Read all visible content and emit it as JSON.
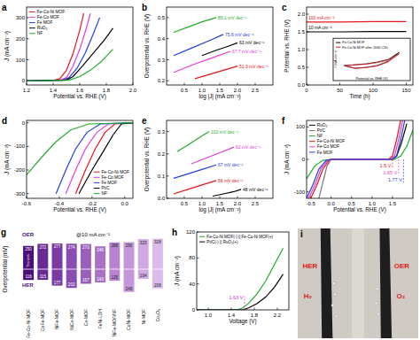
{
  "chart_data": [
    {
      "type": "line",
      "title": "a",
      "xlabel": "Potential vs. RHE (V)",
      "ylabel": "J (mA cm⁻²)",
      "xlim": [
        1.2,
        2.0
      ],
      "xticks": [
        1.2,
        1.4,
        1.6,
        1.8,
        {
          "value": 2,
          "label": "2.0"
        }
      ],
      "ylim": [
        -20,
        350
      ],
      "yticks": [
        0,
        100,
        200,
        300
      ],
      "legend": "upper left",
      "series": [
        {
          "name": "Fe-Co-Ni MOF",
          "color": "#e8141b",
          "x": [
            1.2,
            1.4,
            1.45,
            1.5,
            1.55,
            1.6,
            1.63
          ],
          "values": [
            0,
            2,
            10,
            50,
            130,
            240,
            320
          ]
        },
        {
          "name": "Fe-Co MOF",
          "color": "#e63bd6",
          "x": [
            1.2,
            1.45,
            1.5,
            1.55,
            1.6,
            1.65,
            1.68
          ],
          "values": [
            0,
            3,
            15,
            70,
            150,
            250,
            320
          ]
        },
        {
          "name": "Fe MOF",
          "color": "#1f3fe0",
          "x": [
            1.2,
            1.47,
            1.52,
            1.58,
            1.64,
            1.7,
            1.75
          ],
          "values": [
            0,
            3,
            15,
            60,
            130,
            220,
            300
          ]
        },
        {
          "name": "RuO₂",
          "color": "#000000",
          "x": [
            1.2,
            1.5,
            1.55,
            1.62,
            1.7,
            1.78,
            1.85
          ],
          "values": [
            0,
            4,
            20,
            70,
            130,
            190,
            250
          ]
        },
        {
          "name": "NF",
          "color": "#1fae2a",
          "x": [
            1.2,
            1.52,
            1.6,
            1.68,
            1.76,
            1.85
          ],
          "values": [
            0,
            3,
            20,
            50,
            90,
            150
          ]
        }
      ]
    },
    {
      "type": "line",
      "title": "b",
      "xlabel": "log |J| (mA cm⁻²)",
      "ylabel": "Overpotential vs. RHE (V)",
      "xlim": [
        0,
        3
      ],
      "xticks": [
        0.5,
        {
          "value": 1,
          "label": "1.0"
        },
        1.5,
        {
          "value": 2,
          "label": "2.0"
        },
        2.5
      ],
      "ylim": [
        0.18,
        0.55
      ],
      "yticks": [
        0.2,
        0.3,
        0.4,
        0.5
      ],
      "series": [
        {
          "label": "85.1 mV dec⁻¹",
          "color": "#1fae2a",
          "x": [
            0.2,
            0.6,
            1.0,
            1.4
          ],
          "values": [
            0.43,
            0.455,
            0.48,
            0.5
          ]
        },
        {
          "label": "75.6 mV dec⁻¹",
          "color": "#1f3fe0",
          "x": [
            0.2,
            0.7,
            1.2,
            1.6
          ],
          "values": [
            0.32,
            0.355,
            0.39,
            0.42
          ]
        },
        {
          "label": "63 mV dec⁻¹",
          "color": "#000000",
          "x": [
            1.0,
            1.4,
            1.7,
            2.0
          ],
          "values": [
            0.32,
            0.345,
            0.362,
            0.38
          ]
        },
        {
          "label": "67.7 mV dec⁻¹",
          "color": "#e63bd6",
          "x": [
            0.2,
            0.8,
            1.3,
            1.8
          ],
          "values": [
            0.24,
            0.28,
            0.31,
            0.34
          ]
        },
        {
          "label": "51.3 mV dec⁻¹",
          "color": "#e8141b",
          "x": [
            0.8,
            1.2,
            1.6,
            2.0
          ],
          "values": [
            0.21,
            0.23,
            0.25,
            0.27
          ]
        }
      ]
    },
    {
      "type": "line",
      "title": "c",
      "xlabel": "Time (h)",
      "ylabel": "Potential vs. RHE (V)",
      "xlim": [
        0,
        160
      ],
      "xticks": [
        0,
        50,
        100,
        150
      ],
      "ylim": [
        0,
        2.2
      ],
      "yticks": [
        {
          "value": 0,
          "label": "0.0"
        },
        0.5,
        {
          "value": 1,
          "label": "1.0"
        },
        1.5,
        {
          "value": 2,
          "label": "2.0"
        }
      ],
      "series": [
        {
          "label": "100 mA cm⁻²",
          "color": "#e8141b",
          "x": [
            0,
            50,
            100,
            150
          ],
          "values": [
            1.78,
            1.78,
            1.79,
            1.79
          ]
        },
        {
          "label": "10 mA cm⁻²",
          "color": "#000000",
          "x": [
            0,
            50,
            100,
            150
          ],
          "values": [
            1.5,
            1.5,
            1.51,
            1.51
          ]
        }
      ],
      "inset": {
        "type": "line",
        "xlabel": "Potential vs. RHE (V)",
        "ylabel": "J (mA cm⁻²)",
        "xlim": [
          0.9,
          1.6
        ],
        "ylim": [
          -8,
          16
        ],
        "tick_labels": false,
        "legend": "upper left",
        "series": [
          {
            "name": "Fe-Co-Ni MOF",
            "color": "#000000",
            "x": [
              1.0,
              1.1,
              1.2,
              1.3,
              1.4,
              1.5,
              1.4,
              1.3,
              1.2,
              1.1,
              1.0
            ],
            "values": [
              0.5,
              1,
              1.5,
              2.5,
              4,
              8,
              3,
              0.5,
              -0.5,
              -1,
              0.5
            ]
          },
          {
            "name": "Fe-Co-Ni MOF after 1000 CVs",
            "color": "#e8141b",
            "x": [
              1.0,
              1.1,
              1.2,
              1.3,
              1.4,
              1.5,
              1.4,
              1.3,
              1.2,
              1.1,
              1.0
            ],
            "values": [
              0.4,
              0.9,
              1.3,
              2.2,
              3.6,
              7.2,
              2.6,
              0.3,
              -0.6,
              -1.1,
              0.4
            ]
          }
        ]
      }
    },
    {
      "type": "line",
      "title": "d",
      "xlabel": "Potential vs. RHE (V)",
      "ylabel": "J (mA cm⁻²)",
      "xlim": [
        -0.6,
        0.05
      ],
      "xticks": [
        -0.6,
        -0.4,
        -0.2,
        {
          "value": 0,
          "label": "0.0"
        }
      ],
      "ylim": [
        -320,
        10
      ],
      "yticks": [
        0,
        -100,
        -200,
        -300
      ],
      "legend": "lower right",
      "series": [
        {
          "name": "Fe-Co-Ni MOF",
          "color": "#e8141b",
          "x": [
            -0.3,
            -0.24,
            -0.18,
            -0.12,
            -0.06,
            0.05
          ],
          "values": [
            -300,
            -200,
            -110,
            -40,
            -5,
            0
          ]
        },
        {
          "name": "Fe-Co MOF",
          "color": "#e63bd6",
          "x": [
            -0.36,
            -0.3,
            -0.24,
            -0.17,
            -0.1,
            0.05
          ],
          "values": [
            -300,
            -200,
            -110,
            -40,
            -5,
            0
          ]
        },
        {
          "name": "Fe MOF",
          "color": "#1f3fe0",
          "x": [
            -0.42,
            -0.36,
            -0.3,
            -0.23,
            -0.15,
            0.05
          ],
          "values": [
            -300,
            -200,
            -110,
            -40,
            -5,
            0
          ]
        },
        {
          "name": "Pt/C",
          "color": "#000000",
          "x": [
            -0.28,
            -0.2,
            -0.13,
            -0.07,
            -0.02,
            0.05
          ],
          "values": [
            -300,
            -200,
            -120,
            -50,
            -5,
            0
          ]
        },
        {
          "name": "NF",
          "color": "#1fae2a",
          "x": [
            -0.6,
            -0.5,
            -0.42,
            -0.33,
            -0.22,
            0.05
          ],
          "values": [
            -220,
            -140,
            -80,
            -30,
            -5,
            0
          ]
        }
      ]
    },
    {
      "type": "line",
      "title": "e",
      "xlabel": "log |J| (mA cm⁻²)",
      "ylabel": "Overpotential vs. RHE (V)",
      "xlim": [
        0,
        3
      ],
      "xticks": [
        0.5,
        {
          "value": 1,
          "label": "1.0"
        },
        1.5,
        {
          "value": 2,
          "label": "2.0"
        },
        2.5
      ],
      "ylim": [
        0,
        0.35
      ],
      "yticks": [
        {
          "value": 0,
          "label": "0.0"
        },
        0.1,
        0.2,
        0.3
      ],
      "series": [
        {
          "label": "103 mV dec⁻¹",
          "color": "#1fae2a",
          "x": [
            0.3,
            0.6,
            0.9,
            1.2
          ],
          "values": [
            0.21,
            0.24,
            0.27,
            0.3
          ]
        },
        {
          "label": "67 mV dec⁻¹",
          "color": "#1f3fe0",
          "x": [
            0.2,
            0.6,
            1.0,
            1.4
          ],
          "values": [
            0.09,
            0.11,
            0.13,
            0.15
          ]
        },
        {
          "label": "62 mV dec⁻¹",
          "color": "#e63bd6",
          "x": [
            0.7,
            1.1,
            1.5,
            1.9
          ],
          "values": [
            0.155,
            0.18,
            0.205,
            0.23
          ]
        },
        {
          "label": "56 mV dec⁻¹",
          "color": "#e8141b",
          "x": [
            0.2,
            0.6,
            1.0,
            1.4
          ],
          "values": [
            0.02,
            0.04,
            0.06,
            0.08
          ]
        },
        {
          "label": "48 mV dec⁻¹",
          "color": "#000000",
          "x": [
            1.3,
            1.6,
            1.9,
            2.1
          ],
          "values": [
            0.01,
            0.02,
            0.03,
            0.04
          ]
        }
      ]
    },
    {
      "type": "line",
      "title": "f",
      "xlabel": "Potential vs. RHE (V)",
      "ylabel": "J (mA cm⁻²)",
      "xlim": [
        -0.6,
        2.0
      ],
      "xticks": [
        -0.5,
        {
          "value": 0,
          "label": "0.0"
        },
        0.5,
        {
          "value": 1,
          "label": "1.0"
        },
        1.5
      ],
      "ylim": [
        -120,
        120
      ],
      "yticks": [
        -100,
        0,
        100
      ],
      "legend": "upper left",
      "annotations": [
        {
          "value": 1.5,
          "label": "1.5 V",
          "color": "#e8141b"
        },
        {
          "value": 1.65,
          "label": "1.65 V",
          "color": "#e63bd6"
        },
        {
          "value": 1.77,
          "label": "1.77 V",
          "color": "#1f3fe0"
        }
      ],
      "series": [
        {
          "name": "RuO₂",
          "color": "#000000",
          "x": [
            0,
            1.5,
            1.6,
            1.72,
            1.85
          ],
          "values": [
            0,
            0,
            10,
            50,
            110
          ]
        },
        {
          "name": "Pt/C",
          "color": "#777777",
          "x": [
            -0.3,
            -0.2,
            -0.1,
            0
          ],
          "values": [
            -120,
            -70,
            -20,
            0
          ]
        },
        {
          "name": "NF",
          "color": "#1fae2a",
          "x": [
            -0.6,
            -0.4,
            -0.2,
            0,
            1.55,
            1.7,
            1.85,
            2.0
          ],
          "values": [
            -60,
            -20,
            -3,
            0,
            0,
            10,
            40,
            90
          ]
        },
        {
          "name": "Fe-Co-Ni MOF",
          "color": "#e8141b",
          "x": [
            -0.5,
            -0.35,
            -0.2,
            -0.05,
            0,
            1.4,
            1.5,
            1.6,
            1.7
          ],
          "values": [
            -120,
            -80,
            -30,
            -3,
            0,
            0,
            10,
            60,
            120
          ]
        },
        {
          "name": "Fe-Co MOF",
          "color": "#e63bd6",
          "x": [
            -0.55,
            -0.4,
            -0.25,
            -0.08,
            0,
            1.45,
            1.55,
            1.65,
            1.75
          ],
          "values": [
            -120,
            -80,
            -30,
            -3,
            0,
            0,
            10,
            60,
            120
          ]
        },
        {
          "name": "Fe MOF",
          "color": "#1f3fe0",
          "x": [
            -0.6,
            -0.45,
            -0.3,
            -0.12,
            0,
            1.5,
            1.6,
            1.7,
            1.8
          ],
          "values": [
            -120,
            -80,
            -30,
            -3,
            0,
            0,
            10,
            60,
            120
          ]
        }
      ]
    },
    {
      "type": "bar",
      "title": "g",
      "subtitle": "@10 mA cm⁻²",
      "ylabel": "Overpotential (mV)",
      "annotations": [
        "This work"
      ],
      "categories": [
        "Fe-Co-Ni MOF",
        "CoFe-MOF",
        "NiFe-MOF",
        "NiCo-MOF",
        "Co-MOF",
        "FeNi-LDH",
        "NiFe-MOF/NF",
        "CoNi-MOF",
        "Ni-MOF",
        "Co₃O₄"
      ],
      "ylim": [
        0,
        400
      ],
      "data_labels": true,
      "tick_labels": "x",
      "series": [
        {
          "name": "OER",
          "values": [
            250,
            272,
            277,
            274,
            270,
            246,
            288,
            290,
            323,
            328
          ],
          "colors": [
            "#4b0f7a",
            "#6a2a94",
            "#7b3aa3",
            "#8a4cb0",
            "#9a5ebd",
            "#a970c7",
            "#b783d1",
            "#c496da",
            "#d0a9e2",
            "#dbbbe9"
          ]
        },
        {
          "name": "HER",
          "values": [
            116,
            115,
            177,
            202,
            157,
            143,
            125,
            245,
            104,
            208
          ],
          "colors": [
            "#4b0f7a",
            "#6a2a94",
            "#7b3aa3",
            "#8a4cb0",
            "#9a5ebd",
            "#a970c7",
            "#b783d1",
            "#c496da",
            "#d0a9e2",
            "#dbbbe9"
          ]
        }
      ]
    },
    {
      "type": "line",
      "title": "h",
      "xlabel": "Voltage (V)",
      "ylabel": "J (mA cm⁻²)",
      "xlim": [
        0.8,
        2.4
      ],
      "xticks": [
        {
          "value": 1,
          "label": "1.0"
        },
        1.4,
        1.8,
        2.2
      ],
      "ylim": [
        0,
        120
      ],
      "yticks": [
        0,
        40,
        80,
        120
      ],
      "legend": "upper left",
      "annotations": [
        {
          "value": 1.63,
          "label": "1.63 V",
          "color": "#d62ad0"
        }
      ],
      "series": [
        {
          "name": "Fe-Co-Ni MOF(-) || Fe-Co-Ni MOF(+)",
          "color": "#1fae2a",
          "x": [
            0.8,
            1.5,
            1.6,
            1.7,
            1.85,
            2.0,
            2.15,
            2.3
          ],
          "values": [
            0,
            0,
            3,
            10,
            25,
            45,
            70,
            95
          ]
        },
        {
          "name": "Pt/C(-) || RuO₂(+)",
          "color": "#000000",
          "x": [
            0.8,
            1.6,
            1.7,
            1.85,
            2.0,
            2.15,
            2.3
          ],
          "values": [
            0,
            0,
            3,
            10,
            20,
            35,
            55
          ]
        }
      ]
    },
    {
      "type": "image",
      "title": "i",
      "annotations": [
        "HER",
        "H₂",
        "OER",
        "O₂"
      ]
    }
  ]
}
